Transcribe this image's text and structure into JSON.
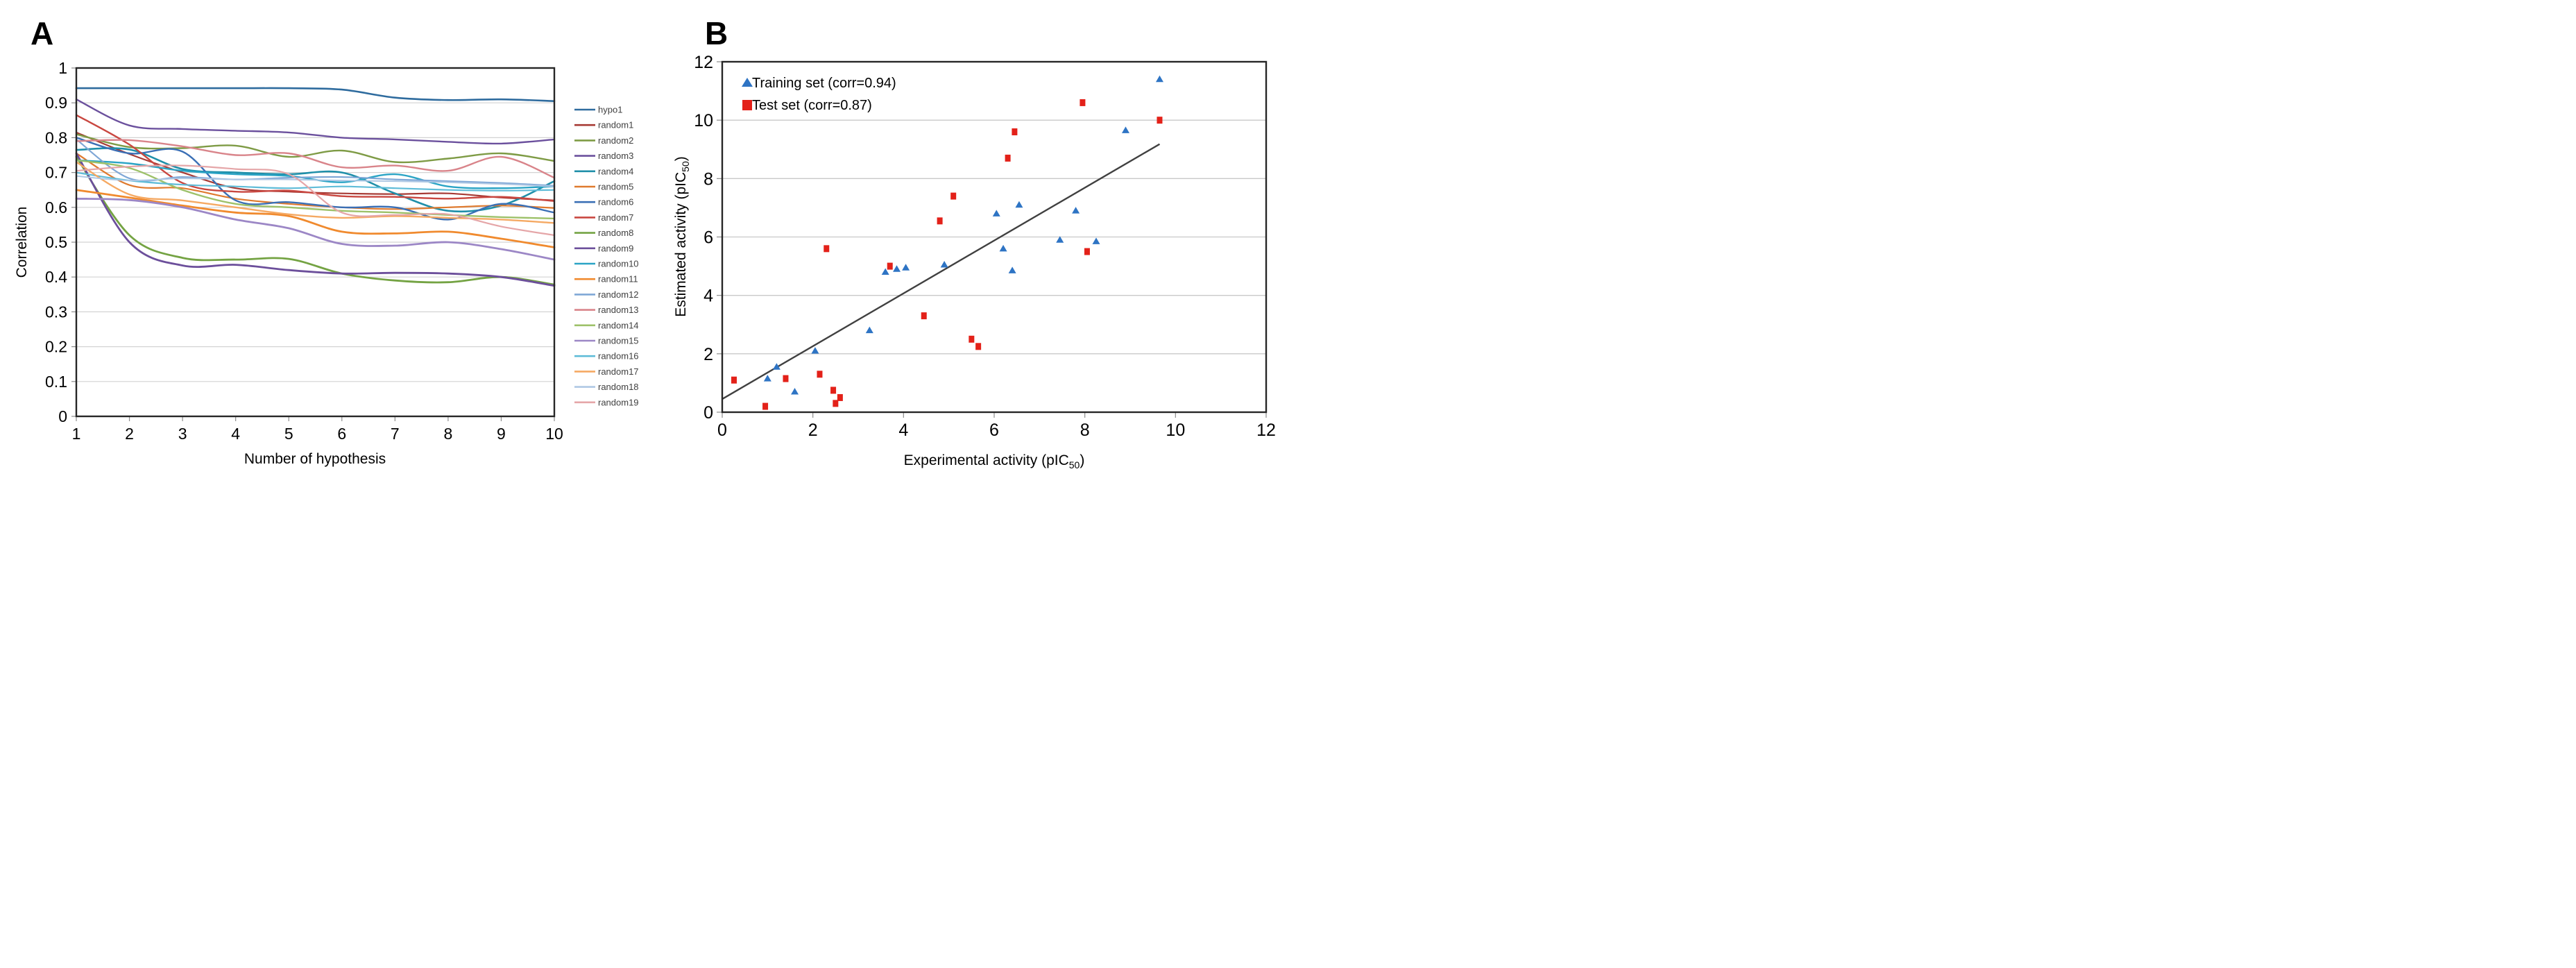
{
  "figure_labels": {
    "panel_a": "A",
    "panel_b": "B"
  },
  "chart_data": [
    {
      "type": "line",
      "title": "",
      "xlabel": "Number of hypothesis",
      "ylabel": "Correlation",
      "x": [
        1,
        2,
        3,
        4,
        5,
        6,
        7,
        8,
        9,
        10
      ],
      "xlim": [
        1,
        10
      ],
      "ylim": [
        0,
        1
      ],
      "y_ticks": [
        0,
        0.1,
        0.2,
        0.3,
        0.4,
        0.5,
        0.6,
        0.7,
        0.8,
        0.9,
        1
      ],
      "grid": "horizontal",
      "legend_position": "right",
      "series": [
        {
          "name": "hypo1",
          "color": "#2E6B9E",
          "width": 2.6,
          "values": [
            0.942,
            0.942,
            0.942,
            0.942,
            0.942,
            0.938,
            0.915,
            0.908,
            0.91,
            0.905
          ]
        },
        {
          "name": "random1",
          "color": "#A73A34",
          "width": 2.2,
          "values": [
            0.815,
            0.753,
            0.7,
            0.655,
            0.645,
            0.64,
            0.638,
            0.64,
            0.628,
            0.62
          ]
        },
        {
          "name": "random2",
          "color": "#7E9B45",
          "width": 2.4,
          "values": [
            0.81,
            0.773,
            0.77,
            0.777,
            0.745,
            0.763,
            0.73,
            0.74,
            0.755,
            0.733
          ]
        },
        {
          "name": "random3",
          "color": "#6B509D",
          "width": 2.4,
          "values": [
            0.91,
            0.835,
            0.825,
            0.82,
            0.815,
            0.8,
            0.795,
            0.788,
            0.783,
            0.795
          ]
        },
        {
          "name": "random4",
          "color": "#1F8FA9",
          "width": 2.6,
          "values": [
            0.765,
            0.766,
            0.71,
            0.7,
            0.695,
            0.7,
            0.64,
            0.59,
            0.605,
            0.675
          ]
        },
        {
          "name": "random5",
          "color": "#DF7A2E",
          "width": 2.2,
          "values": [
            0.755,
            0.664,
            0.655,
            0.625,
            0.61,
            0.6,
            0.595,
            0.6,
            0.605,
            0.598
          ]
        },
        {
          "name": "random6",
          "color": "#3A6FB5",
          "width": 2.4,
          "values": [
            0.8,
            0.755,
            0.76,
            0.62,
            0.615,
            0.6,
            0.6,
            0.565,
            0.61,
            0.585
          ]
        },
        {
          "name": "random7",
          "color": "#C94740",
          "width": 2.4,
          "values": [
            0.865,
            0.78,
            0.67,
            0.645,
            0.648,
            0.632,
            0.63,
            0.625,
            0.63,
            0.618
          ]
        },
        {
          "name": "random8",
          "color": "#74A343",
          "width": 2.8,
          "values": [
            0.745,
            0.52,
            0.455,
            0.45,
            0.452,
            0.41,
            0.39,
            0.385,
            0.4,
            0.378
          ]
        },
        {
          "name": "random9",
          "color": "#6C4F9B",
          "width": 2.8,
          "values": [
            0.755,
            0.5,
            0.433,
            0.435,
            0.42,
            0.41,
            0.412,
            0.41,
            0.4,
            0.375
          ]
        },
        {
          "name": "random10",
          "color": "#2AA4C5",
          "width": 2.4,
          "values": [
            0.735,
            0.726,
            0.705,
            0.695,
            0.69,
            0.672,
            0.695,
            0.66,
            0.655,
            0.66
          ]
        },
        {
          "name": "random11",
          "color": "#F08A2E",
          "width": 2.8,
          "values": [
            0.65,
            0.628,
            0.605,
            0.585,
            0.575,
            0.53,
            0.525,
            0.53,
            0.51,
            0.485
          ]
        },
        {
          "name": "random12",
          "color": "#7FA7D6",
          "width": 2.2,
          "values": [
            0.795,
            0.683,
            0.687,
            0.68,
            0.685,
            0.687,
            0.68,
            0.675,
            0.67,
            0.662
          ]
        },
        {
          "name": "random13",
          "color": "#D9848A",
          "width": 2.4,
          "values": [
            0.79,
            0.793,
            0.775,
            0.75,
            0.755,
            0.715,
            0.72,
            0.705,
            0.745,
            0.685
          ]
        },
        {
          "name": "random14",
          "color": "#9DC169",
          "width": 2.4,
          "values": [
            0.735,
            0.713,
            0.65,
            0.61,
            0.6,
            0.59,
            0.585,
            0.578,
            0.572,
            0.568
          ]
        },
        {
          "name": "random15",
          "color": "#9C87C6",
          "width": 2.8,
          "values": [
            0.625,
            0.621,
            0.6,
            0.565,
            0.54,
            0.495,
            0.49,
            0.5,
            0.48,
            0.45
          ]
        },
        {
          "name": "random16",
          "color": "#5FBCD8",
          "width": 2.2,
          "values": [
            0.7,
            0.677,
            0.665,
            0.66,
            0.655,
            0.66,
            0.655,
            0.65,
            0.648,
            0.65
          ]
        },
        {
          "name": "random17",
          "color": "#F5A963",
          "width": 2.4,
          "values": [
            0.73,
            0.637,
            0.62,
            0.6,
            0.58,
            0.57,
            0.575,
            0.57,
            0.565,
            0.555
          ]
        },
        {
          "name": "random18",
          "color": "#AFC8E4",
          "width": 2.0,
          "values": [
            0.69,
            0.677,
            0.683,
            0.68,
            0.68,
            0.677,
            0.675,
            0.672,
            0.667,
            0.66
          ]
        },
        {
          "name": "random19",
          "color": "#E5A6A8",
          "width": 2.2,
          "values": [
            0.705,
            0.717,
            0.72,
            0.71,
            0.695,
            0.585,
            0.578,
            0.58,
            0.545,
            0.52
          ]
        }
      ]
    },
    {
      "type": "scatter",
      "title": "",
      "xlabel": "Experimental activity (pIC50)",
      "ylabel": "Estimated activity (pIC50)",
      "xlabel_parts": {
        "pre": "Experimental activity (pIC",
        "sub": "50",
        "post": ")"
      },
      "ylabel_parts": {
        "pre": "Estimated activity (pIC",
        "sub": "50",
        "post": ")"
      },
      "xlim": [
        0,
        12
      ],
      "ylim": [
        0,
        12
      ],
      "x_ticks": [
        0,
        2,
        4,
        6,
        8,
        10,
        12
      ],
      "y_ticks": [
        0,
        2,
        4,
        6,
        8,
        10,
        12
      ],
      "grid": "horizontal",
      "legend_position": "top-left-inside",
      "series": [
        {
          "name": "Training set (corr=0.94)",
          "marker": "triangle",
          "color": "#2E74C4",
          "points": [
            [
              1.0,
              1.15
            ],
            [
              1.2,
              1.55
            ],
            [
              1.6,
              0.7
            ],
            [
              2.05,
              2.1
            ],
            [
              3.25,
              2.8
            ],
            [
              3.6,
              4.8
            ],
            [
              3.85,
              4.9
            ],
            [
              4.05,
              4.95
            ],
            [
              4.9,
              5.05
            ],
            [
              6.05,
              6.8
            ],
            [
              6.2,
              5.6
            ],
            [
              6.4,
              4.85
            ],
            [
              6.55,
              7.1
            ],
            [
              7.45,
              5.9
            ],
            [
              7.8,
              6.9
            ],
            [
              8.25,
              5.85
            ],
            [
              8.9,
              9.65
            ],
            [
              9.65,
              11.4
            ]
          ]
        },
        {
          "name": "Test set (corr=0.87)",
          "marker": "square",
          "color": "#E32119",
          "points": [
            [
              0.26,
              1.1
            ],
            [
              0.95,
              0.2
            ],
            [
              1.4,
              1.15
            ],
            [
              2.15,
              1.3
            ],
            [
              2.3,
              5.6
            ],
            [
              2.45,
              0.75
            ],
            [
              2.5,
              0.3
            ],
            [
              2.6,
              0.5
            ],
            [
              3.7,
              5.0
            ],
            [
              4.45,
              3.3
            ],
            [
              4.8,
              6.55
            ],
            [
              5.1,
              7.4
            ],
            [
              5.5,
              2.5
            ],
            [
              5.65,
              2.25
            ],
            [
              6.3,
              8.7
            ],
            [
              6.45,
              9.6
            ],
            [
              7.95,
              10.6
            ],
            [
              8.05,
              5.5
            ],
            [
              9.65,
              10.0
            ]
          ]
        }
      ],
      "trendline": {
        "x1": 0,
        "y1": 0.45,
        "x2": 9.65,
        "y2": 9.18,
        "color": "#404040"
      }
    }
  ]
}
